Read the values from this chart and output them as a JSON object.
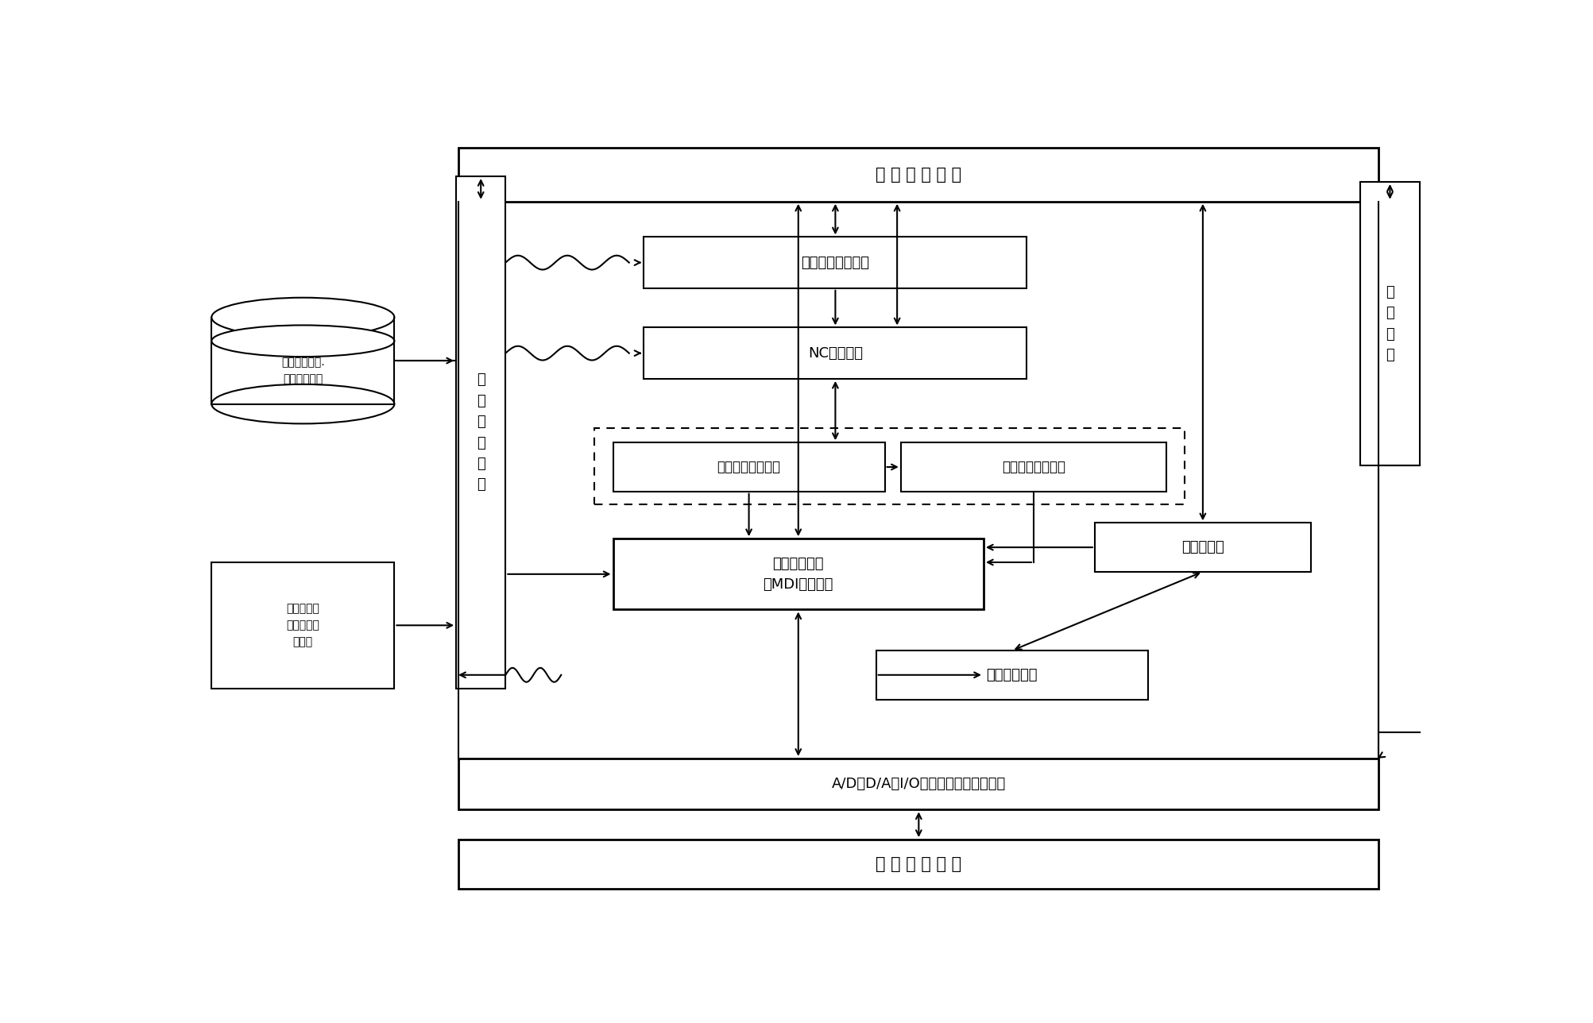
{
  "bg": "#ffffff",
  "lc": "#000000",
  "lw": 1.5,
  "fw": "normal",
  "fonts": [
    "SimHei",
    "Microsoft YaHei",
    "WenQuanYi Micro Hei",
    "Noto Sans CJK SC",
    "DejaVu Sans"
  ],
  "labels": {
    "ui": "用 户 界 面 管 理",
    "pg": "工艺智能生成模块",
    "nc": "NC程序编制",
    "ofs": "拉弯过程离线仿真",
    "rts": "拉弯过程实时仿真",
    "pc": "拉弯过程控制\n（MDI、自动）",
    "fd": "拉弯故障诊断",
    "di": "设备初始化",
    "ad": "A/D、D/A、I/O等扩展卡及其驱动程序",
    "mach": "转 台 式 拉 弯 机",
    "db1": "拉弯过程及工.\n艺信息数据库",
    "db2": "拉弯过程及\n工艺信息数\n据文件",
    "vp": "拉\n弯\n数\n据\n处\n理",
    "oh": "操\n作\n帮\n助"
  },
  "coords": {
    "ui": [
      0.21,
      0.9,
      0.745,
      0.068
    ],
    "pg": [
      0.36,
      0.79,
      0.31,
      0.065
    ],
    "nc": [
      0.36,
      0.675,
      0.31,
      0.065
    ],
    "ofs": [
      0.335,
      0.532,
      0.22,
      0.062
    ],
    "rts": [
      0.568,
      0.532,
      0.215,
      0.062
    ],
    "dsh": [
      0.32,
      0.516,
      0.478,
      0.096
    ],
    "pc": [
      0.335,
      0.382,
      0.3,
      0.09
    ],
    "fd": [
      0.548,
      0.268,
      0.22,
      0.062
    ],
    "di": [
      0.725,
      0.43,
      0.175,
      0.062
    ],
    "ad": [
      0.21,
      0.128,
      0.745,
      0.065
    ],
    "mach": [
      0.21,
      0.028,
      0.745,
      0.062
    ],
    "db1": [
      0.01,
      0.618,
      0.148,
      0.0
    ],
    "db2": [
      0.01,
      0.282,
      0.148,
      0.16
    ],
    "vp": [
      0.208,
      0.282,
      0.04,
      0.65
    ],
    "oh": [
      0.94,
      0.565,
      0.048,
      0.36
    ]
  }
}
